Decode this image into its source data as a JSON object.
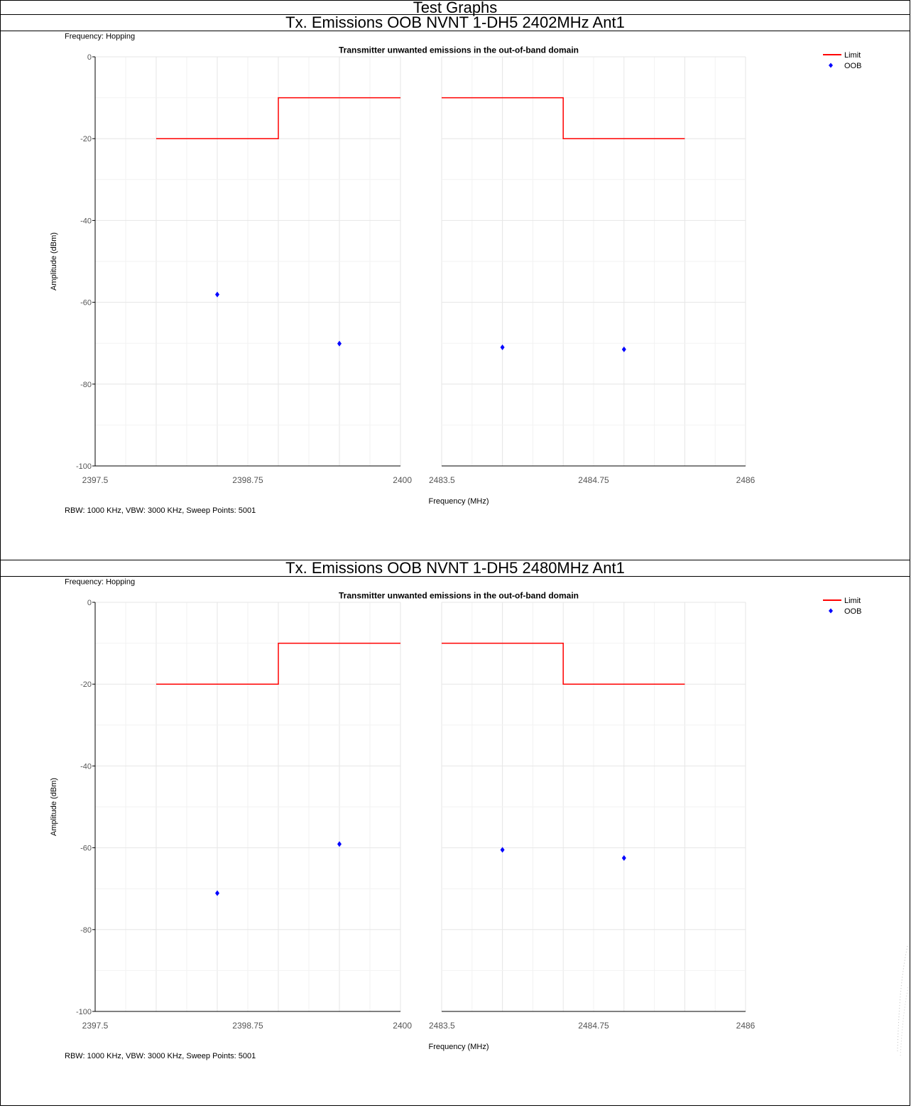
{
  "header": {
    "title": "Test Graphs"
  },
  "graphs": [
    {
      "caption": "Tx. Emissions OOB NVNT 1-DH5 2402MHz Ant1",
      "frequency_label": "Frequency: Hopping",
      "footer": "RBW: 1000 KHz,  VBW: 3000 KHz,  Sweep Points: 5001"
    },
    {
      "caption": "Tx. Emissions OOB NVNT 1-DH5 2480MHz Ant1",
      "frequency_label": "Frequency: Hopping",
      "footer": "RBW: 1000 KHz,  VBW: 3000 KHz,  Sweep Points: 5001"
    }
  ],
  "chart_data": [
    {
      "type": "scatter",
      "title": "Transmitter unwanted emissions in the out-of-band domain",
      "xlabel": "Frequency (MHz)",
      "ylabel": "Amplitude (dBm)",
      "ylim": [
        -100,
        0
      ],
      "yticks": [
        "0",
        "-20",
        "-40",
        "-60",
        "-80",
        "-100"
      ],
      "legend_position": "top-right",
      "grid": true,
      "panels": [
        {
          "xlim": [
            2397.5,
            2400
          ],
          "xticks": [
            "2397.5",
            "2398.75",
            "2400"
          ]
        },
        {
          "xlim": [
            2483.5,
            2486
          ],
          "xticks": [
            "2483.5",
            "2484.75",
            "2486"
          ]
        }
      ],
      "series": [
        {
          "name": "Limit",
          "color": "#ff0000",
          "style": "line",
          "panels": [
            {
              "x": [
                2398,
                2399,
                2399,
                2400
              ],
              "y": [
                -20,
                -20,
                -10,
                -10
              ]
            },
            {
              "x": [
                2483.5,
                2484.5,
                2484.5,
                2485.5
              ],
              "y": [
                -10,
                -10,
                -20,
                -20
              ]
            }
          ]
        },
        {
          "name": "OOB",
          "color": "#0000ff",
          "style": "marker",
          "panels": [
            {
              "x": [
                2398.5,
                2399.5
              ],
              "y": [
                -58.1,
                -70.1
              ]
            },
            {
              "x": [
                2484,
                2485
              ],
              "y": [
                -71,
                -71.5
              ]
            }
          ]
        }
      ]
    },
    {
      "type": "scatter",
      "title": "Transmitter unwanted emissions in the out-of-band domain",
      "xlabel": "Frequency (MHz)",
      "ylabel": "Amplitude (dBm)",
      "ylim": [
        -100,
        0
      ],
      "yticks": [
        "0",
        "-20",
        "-40",
        "-60",
        "-80",
        "-100"
      ],
      "legend_position": "top-right",
      "grid": true,
      "panels": [
        {
          "xlim": [
            2397.5,
            2400
          ],
          "xticks": [
            "2397.5",
            "2398.75",
            "2400"
          ]
        },
        {
          "xlim": [
            2483.5,
            2486
          ],
          "xticks": [
            "2483.5",
            "2484.75",
            "2486"
          ]
        }
      ],
      "series": [
        {
          "name": "Limit",
          "color": "#ff0000",
          "style": "line",
          "panels": [
            {
              "x": [
                2398,
                2399,
                2399,
                2400
              ],
              "y": [
                -20,
                -20,
                -10,
                -10
              ]
            },
            {
              "x": [
                2483.5,
                2484.5,
                2484.5,
                2485.5
              ],
              "y": [
                -10,
                -10,
                -20,
                -20
              ]
            }
          ]
        },
        {
          "name": "OOB",
          "color": "#0000ff",
          "style": "marker",
          "panels": [
            {
              "x": [
                2398.5,
                2399.5
              ],
              "y": [
                -71.1,
                -59.1
              ]
            },
            {
              "x": [
                2484,
                2485
              ],
              "y": [
                -60.5,
                -62.5
              ]
            }
          ]
        }
      ]
    }
  ]
}
